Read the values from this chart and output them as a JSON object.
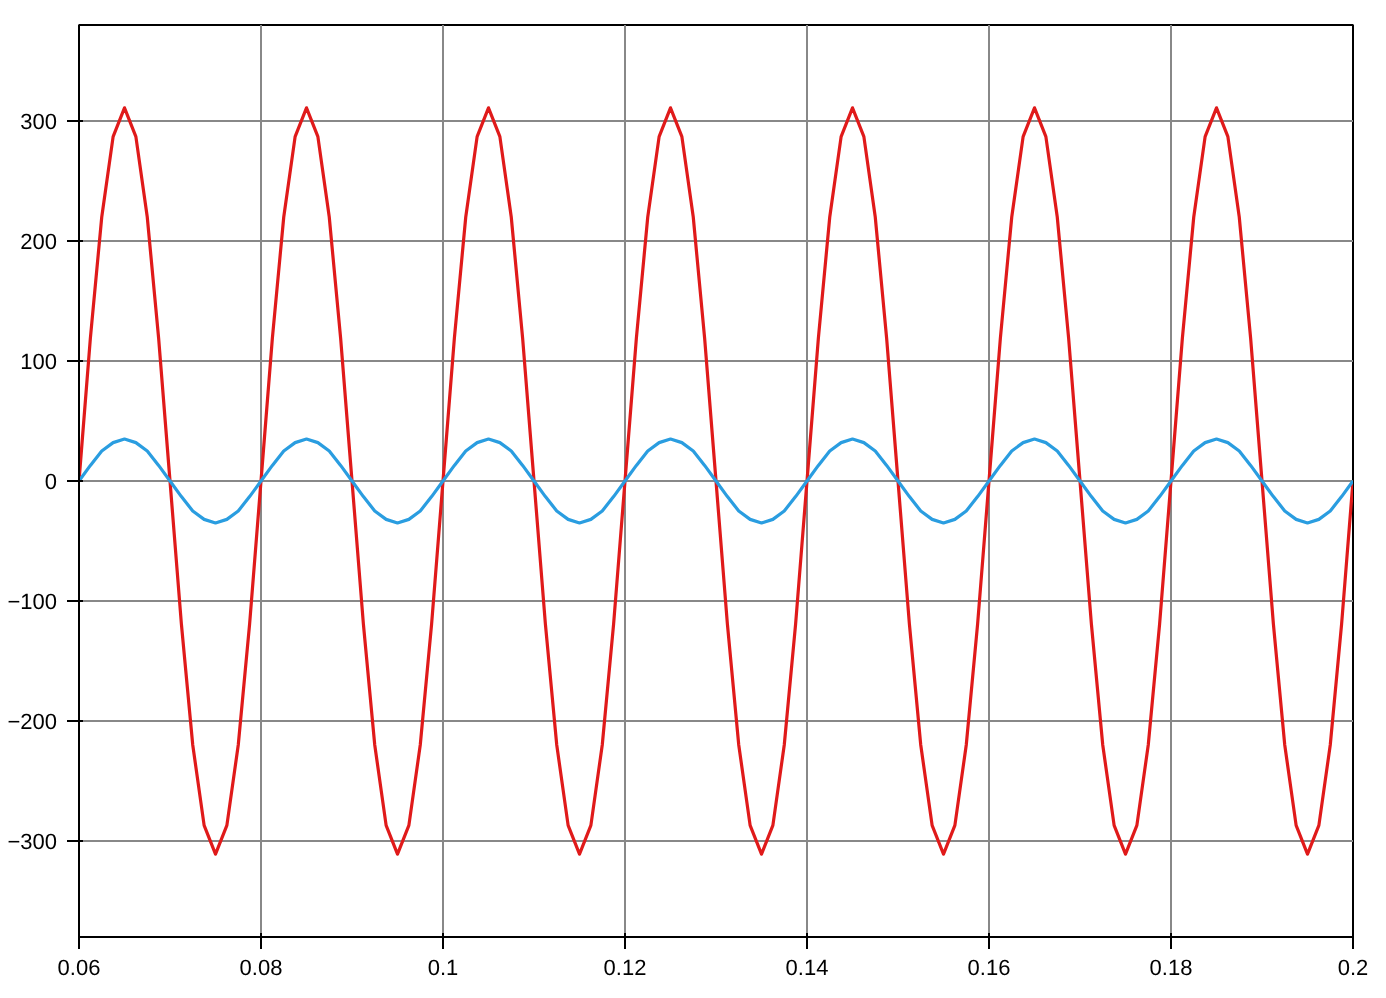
{
  "chart_data": {
    "type": "line",
    "x": [
      0.06,
      0.06125,
      0.0625,
      0.06375,
      0.065,
      0.06625,
      0.0675,
      0.06875,
      0.07,
      0.07125,
      0.0725,
      0.07375,
      0.075,
      0.07625,
      0.0775,
      0.07875,
      0.08,
      0.08125,
      0.0825,
      0.08375,
      0.085,
      0.08625,
      0.0875,
      0.08875,
      0.09,
      0.09125,
      0.0925,
      0.09375,
      0.095,
      0.09625,
      0.0975,
      0.09875,
      0.1,
      0.10125,
      0.1025,
      0.10375,
      0.105,
      0.10625,
      0.1075,
      0.10875,
      0.11,
      0.11125,
      0.1125,
      0.11375,
      0.115,
      0.11625,
      0.1175,
      0.11875,
      0.12,
      0.12125,
      0.1225,
      0.12375,
      0.125,
      0.12625,
      0.1275,
      0.12875,
      0.13,
      0.13125,
      0.1325,
      0.13375,
      0.135,
      0.13625,
      0.1375,
      0.13875,
      0.14,
      0.14125,
      0.1425,
      0.14375,
      0.145,
      0.14625,
      0.1475,
      0.14875,
      0.15,
      0.15125,
      0.1525,
      0.15375,
      0.155,
      0.15625,
      0.1575,
      0.15875,
      0.16,
      0.16125,
      0.1625,
      0.16375,
      0.165,
      0.16625,
      0.1675,
      0.16875,
      0.17,
      0.17125,
      0.1725,
      0.17375,
      0.175,
      0.17625,
      0.1775,
      0.17875,
      0.18,
      0.18125,
      0.1825,
      0.18375,
      0.185,
      0.18625,
      0.1875,
      0.18875,
      0.19,
      0.19125,
      0.1925,
      0.19375,
      0.195,
      0.19625,
      0.1975,
      0.19875,
      0.2
    ],
    "series": [
      {
        "color": "#e01a1a",
        "values": [
          0,
          119,
          220,
          287,
          311,
          287,
          220,
          119,
          0,
          -119,
          -220,
          -287,
          -311,
          -287,
          -220,
          -119,
          0,
          119,
          220,
          287,
          311,
          287,
          220,
          119,
          0,
          -119,
          -220,
          -287,
          -311,
          -287,
          -220,
          -119,
          0,
          119,
          220,
          287,
          311,
          287,
          220,
          119,
          0,
          -119,
          -220,
          -287,
          -311,
          -287,
          -220,
          -119,
          0,
          119,
          220,
          287,
          311,
          287,
          220,
          119,
          0,
          -119,
          -220,
          -287,
          -311,
          -287,
          -220,
          -119,
          0,
          119,
          220,
          287,
          311,
          287,
          220,
          119,
          0,
          -119,
          -220,
          -287,
          -311,
          -287,
          -220,
          -119,
          0,
          119,
          220,
          287,
          311,
          287,
          220,
          119,
          0,
          -119,
          -220,
          -287,
          -311,
          -287,
          -220,
          -119,
          0,
          119,
          220,
          287,
          311,
          287,
          220,
          119,
          0,
          -119,
          -220,
          -287,
          -311,
          -287,
          -220,
          -119,
          0
        ]
      },
      {
        "color": "#2a9de0",
        "values": [
          0,
          13,
          25,
          32,
          35,
          32,
          25,
          13,
          0,
          -13,
          -25,
          -32,
          -35,
          -32,
          -25,
          -13,
          0,
          13,
          25,
          32,
          35,
          32,
          25,
          13,
          0,
          -13,
          -25,
          -32,
          -35,
          -32,
          -25,
          -13,
          0,
          13,
          25,
          32,
          35,
          32,
          25,
          13,
          0,
          -13,
          -25,
          -32,
          -35,
          -32,
          -25,
          -13,
          0,
          13,
          25,
          32,
          35,
          32,
          25,
          13,
          0,
          -13,
          -25,
          -32,
          -35,
          -32,
          -25,
          -13,
          0,
          13,
          25,
          32,
          35,
          32,
          25,
          13,
          0,
          -13,
          -25,
          -32,
          -35,
          -32,
          -25,
          -13,
          0,
          13,
          25,
          32,
          35,
          32,
          25,
          13,
          0,
          -13,
          -25,
          -32,
          -35,
          -32,
          -25,
          -13,
          0,
          13,
          25,
          32,
          35,
          32,
          25,
          13,
          0,
          -13,
          -25,
          -32,
          -35,
          -32,
          -25,
          -13,
          0
        ]
      }
    ],
    "xlim": [
      0.06,
      0.2
    ],
    "ylim": [
      -380,
      380
    ],
    "xticks": [
      0.06,
      0.08,
      0.1,
      0.12,
      0.14,
      0.16,
      0.18,
      0.2
    ],
    "yticks": [
      -300,
      -200,
      -100,
      0,
      100,
      200,
      300
    ],
    "grid": true
  }
}
